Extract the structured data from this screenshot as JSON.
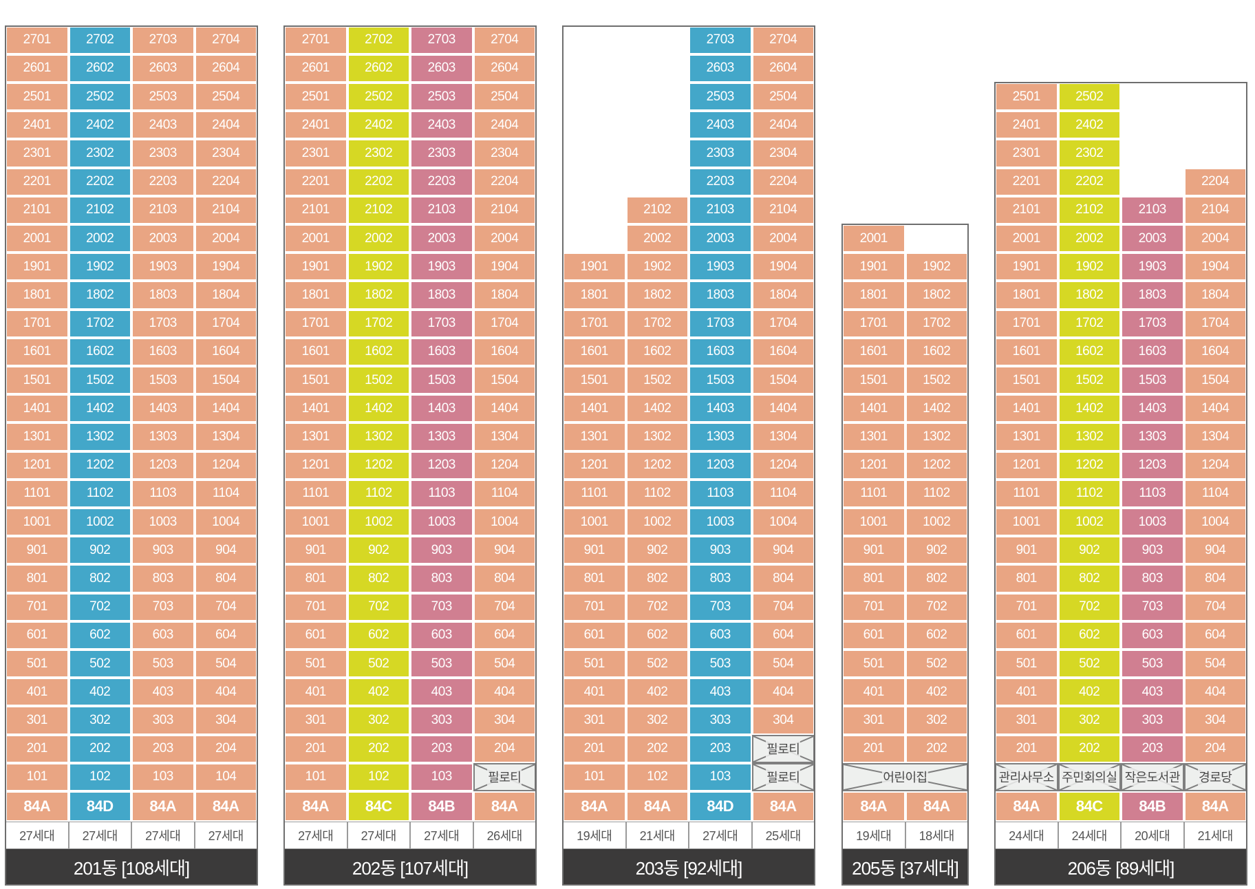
{
  "colors": {
    "peach": "#e9a583",
    "blue": "#43a7c9",
    "yellow": "#d6d824",
    "pink": "#d07f91",
    "label_bg": "#3b3a3a"
  },
  "buildings": [
    {
      "label": "201동 [108세대]",
      "columns": [
        {
          "line": "01",
          "color": "peach",
          "top": 27,
          "special": [],
          "type": "84A",
          "count": "27세대"
        },
        {
          "line": "02",
          "color": "blue",
          "top": 27,
          "special": [],
          "type": "84D",
          "count": "27세대"
        },
        {
          "line": "03",
          "color": "peach",
          "top": 27,
          "special": [],
          "type": "84A",
          "count": "27세대"
        },
        {
          "line": "04",
          "color": "peach",
          "top": 27,
          "special": [],
          "type": "84A",
          "count": "27세대"
        }
      ]
    },
    {
      "label": "202동 [107세대]",
      "columns": [
        {
          "line": "01",
          "color": "peach",
          "top": 27,
          "special": [],
          "type": "84A",
          "count": "27세대"
        },
        {
          "line": "02",
          "color": "yellow",
          "top": 27,
          "special": [],
          "type": "84C",
          "count": "27세대"
        },
        {
          "line": "03",
          "color": "pink",
          "top": 27,
          "special": [],
          "type": "84B",
          "count": "27세대"
        },
        {
          "line": "04",
          "color": "peach",
          "top": 27,
          "special": [
            {
              "floor": 1,
              "text": "필로티"
            }
          ],
          "type": "84A",
          "count": "26세대"
        }
      ]
    },
    {
      "label": "203동 [92세대]",
      "columns": [
        {
          "line": "01",
          "color": "peach",
          "top": 19,
          "special": [],
          "type": "84A",
          "count": "19세대"
        },
        {
          "line": "02",
          "color": "peach",
          "top": 21,
          "special": [],
          "type": "84A",
          "count": "21세대"
        },
        {
          "line": "03",
          "color": "blue",
          "top": 27,
          "special": [],
          "type": "84D",
          "count": "27세대"
        },
        {
          "line": "04",
          "color": "peach",
          "top": 27,
          "special": [
            {
              "floor": 1,
              "text": "필로티"
            },
            {
              "floor": 2,
              "text": "필로티"
            }
          ],
          "type": "84A",
          "count": "25세대"
        }
      ]
    },
    {
      "label": "205동 [37세대]",
      "merged_first_floor": "어린이집",
      "columns": [
        {
          "line": "01",
          "color": "peach",
          "top": 20,
          "special": [],
          "type": "84A",
          "count": "19세대"
        },
        {
          "line": "02",
          "color": "peach",
          "top": 19,
          "special": [],
          "type": "84A",
          "count": "18세대"
        }
      ]
    },
    {
      "label": "206동 [89세대]",
      "columns": [
        {
          "line": "01",
          "color": "peach",
          "top": 25,
          "special": [
            {
              "floor": 1,
              "text": "관리사무소"
            }
          ],
          "type": "84A",
          "count": "24세대"
        },
        {
          "line": "02",
          "color": "yellow",
          "top": 25,
          "special": [
            {
              "floor": 1,
              "text": "주민회의실"
            }
          ],
          "type": "84C",
          "count": "24세대"
        },
        {
          "line": "03",
          "color": "pink",
          "top": 21,
          "special": [
            {
              "floor": 1,
              "text": "작은도서관"
            }
          ],
          "type": "84B",
          "count": "20세대"
        },
        {
          "line": "04",
          "color": "peach",
          "top": 22,
          "special": [
            {
              "floor": 1,
              "text": "경로당"
            }
          ],
          "type": "84A",
          "count": "21세대"
        }
      ]
    }
  ]
}
